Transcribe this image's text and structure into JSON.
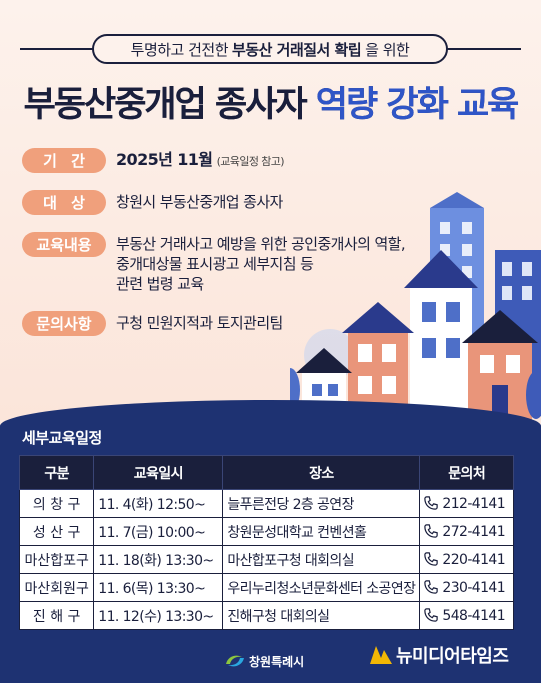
{
  "header": {
    "subtitle_pre": "투명하고 건전한",
    "subtitle_bold": "부동산 거래질서 확립",
    "subtitle_post": "을 위한",
    "title_main": "부동산중개업 종사자",
    "title_accent": "역량 강화 교육"
  },
  "info": [
    {
      "tag_chars": [
        "기",
        "간"
      ],
      "text_bold": "2025년 11월",
      "text_small": "(교육일정 참고)"
    },
    {
      "tag_chars": [
        "대",
        "상"
      ],
      "text": "창원시 부동산중개업 종사자"
    },
    {
      "tag": "교육내용",
      "lines": [
        "부동산 거래사고 예방을 위한 공인중개사의 역할,",
        "중개대상물 표시광고 세부지침 등",
        "관련 법령 교육"
      ]
    },
    {
      "tag": "문의사항",
      "text": "구청 민원지적과 토지관리팀"
    }
  ],
  "schedule": {
    "title": "세부교육일정",
    "headers": [
      "구분",
      "교육일시",
      "장소",
      "문의처"
    ],
    "rows": [
      {
        "district": "의 창 구",
        "datetime": "11. 4(화) 12:50~",
        "place": "늘푸른전당 2층 공연장",
        "phone": "212-4141"
      },
      {
        "district": "성 산 구",
        "datetime": "11. 7(금) 10:00~",
        "place": "창원문성대학교 컨벤션홀",
        "phone": "272-4141"
      },
      {
        "district": "마산합포구",
        "datetime": "11. 18(화) 13:30~",
        "place": "마산합포구청 대회의실",
        "phone": "220-4141"
      },
      {
        "district": "마산회원구",
        "datetime": "11. 6(목) 13:30~",
        "place": "우리누리청소년문화센터 소공연장",
        "phone": "230-4141"
      },
      {
        "district": "진 해 구",
        "datetime": "11. 12(수) 13:30~",
        "place": "진해구청 대회의실",
        "phone": "548-4141"
      }
    ]
  },
  "footer": {
    "changwon_logo": "창원특례시",
    "newmedia_logo": "뉴미디어타임즈"
  },
  "colors": {
    "navy": "#1a1f3c",
    "accent_blue": "#2f55c7",
    "tag_orange": "#f0a07c",
    "bottom_blue": "#1e3272",
    "background_peach": "#fbe5da"
  }
}
